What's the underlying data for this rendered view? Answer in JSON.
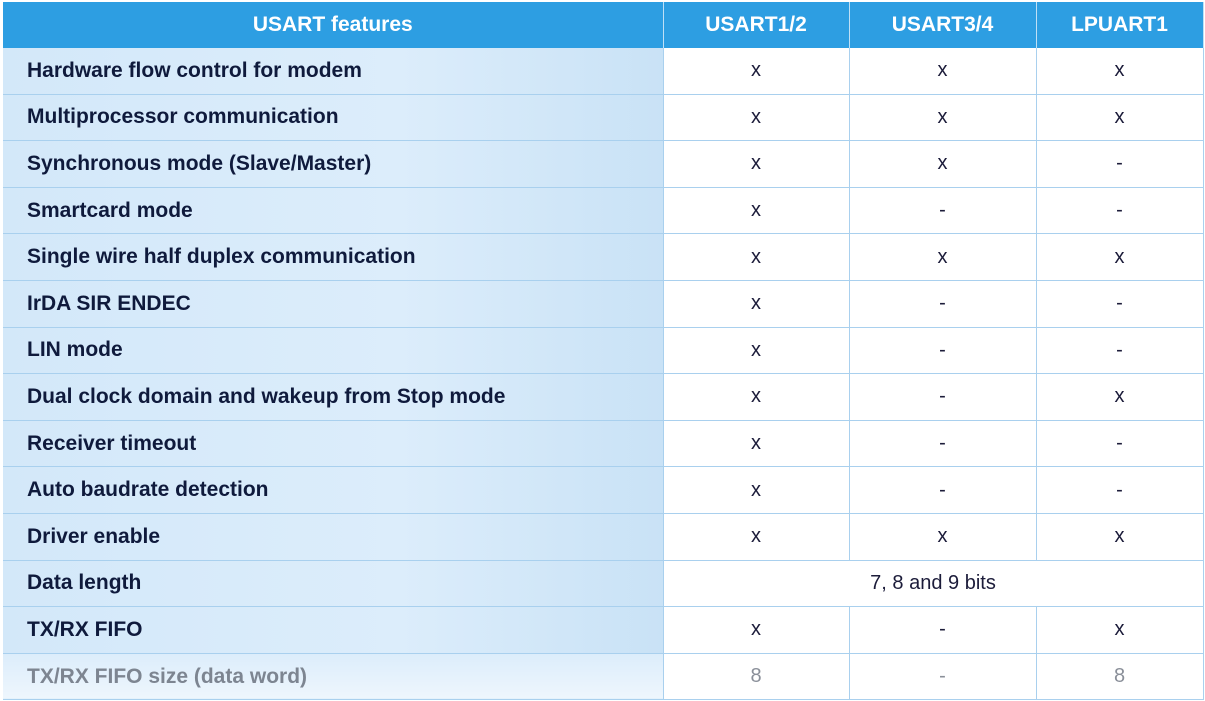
{
  "headers": [
    "USART features",
    "USART1/2",
    "USART3/4",
    "LPUART1"
  ],
  "rows": [
    {
      "feature": "Hardware flow control for modem",
      "values": [
        "x",
        "x",
        "x"
      ]
    },
    {
      "feature": "Multiprocessor communication",
      "values": [
        "x",
        "x",
        "x"
      ]
    },
    {
      "feature": "Synchronous mode (Slave/Master)",
      "values": [
        "x",
        "x",
        "-"
      ]
    },
    {
      "feature": "Smartcard mode",
      "values": [
        "x",
        "-",
        "-"
      ]
    },
    {
      "feature": "Single wire half duplex  communication",
      "values": [
        "x",
        "x",
        "x"
      ]
    },
    {
      "feature": "IrDA SIR ENDEC",
      "values": [
        "x",
        "-",
        "-"
      ]
    },
    {
      "feature": "LIN mode",
      "values": [
        "x",
        "-",
        "-"
      ]
    },
    {
      "feature": "Dual clock domain and wakeup from Stop mode",
      "values": [
        "x",
        "-",
        "x"
      ]
    },
    {
      "feature": "Receiver timeout",
      "values": [
        "x",
        "-",
        "-"
      ]
    },
    {
      "feature": "Auto baudrate detection",
      "values": [
        "x",
        "-",
        "-"
      ]
    },
    {
      "feature": "Driver enable",
      "values": [
        "x",
        "x",
        "x"
      ]
    },
    {
      "feature": "Data length",
      "merged": "7, 8 and 9 bits"
    },
    {
      "feature": "TX/RX FIFO",
      "values": [
        "x",
        "-",
        "x"
      ]
    },
    {
      "feature": "TX/RX FIFO size (data word)",
      "values": [
        "8",
        "-",
        "8"
      ]
    }
  ],
  "colors": {
    "header_bg": "#2d9ee2",
    "feature_bg": "#d3e8f9",
    "grid": "#a9d0ee"
  }
}
